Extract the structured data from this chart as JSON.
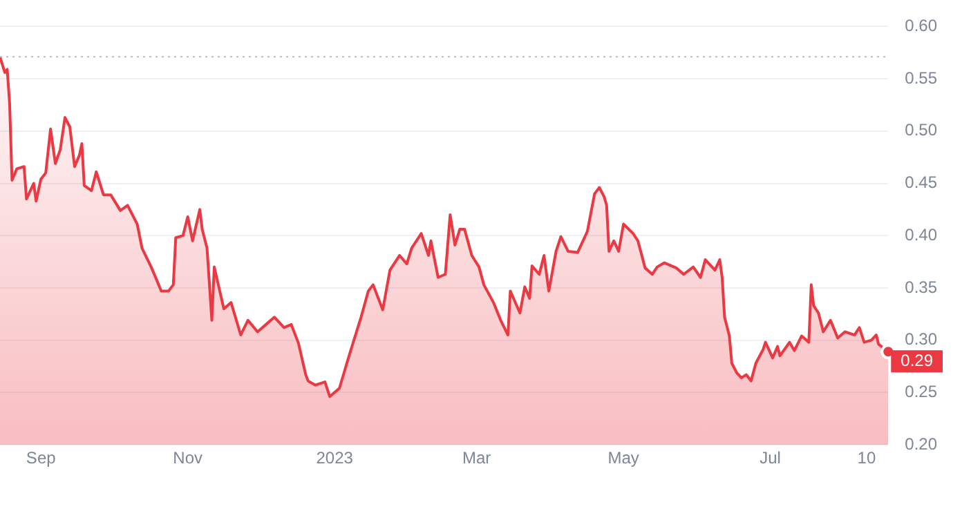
{
  "chart_data": {
    "type": "area",
    "x": [
      "2022-08-15",
      "2022-08-17",
      "2022-08-18",
      "2022-08-19",
      "2022-08-20",
      "2022-08-22",
      "2022-08-25",
      "2022-08-26",
      "2022-08-29",
      "2022-08-30",
      "2022-09-01",
      "2022-09-03",
      "2022-09-05",
      "2022-09-07",
      "2022-09-09",
      "2022-09-11",
      "2022-09-13",
      "2022-09-15",
      "2022-09-17",
      "2022-09-18",
      "2022-09-19",
      "2022-09-22",
      "2022-09-24",
      "2022-09-27",
      "2022-09-30",
      "2022-10-04",
      "2022-10-07",
      "2022-10-11",
      "2022-10-13",
      "2022-10-17",
      "2022-10-21",
      "2022-10-24",
      "2022-10-26",
      "2022-10-27",
      "2022-10-30",
      "2022-11-01",
      "2022-11-03",
      "2022-11-06",
      "2022-11-07",
      "2022-11-09",
      "2022-11-11",
      "2022-11-12",
      "2022-11-16",
      "2022-11-19",
      "2022-11-23",
      "2022-11-26",
      "2022-11-30",
      "2022-12-04",
      "2022-12-07",
      "2022-12-11",
      "2022-12-14",
      "2022-12-17",
      "2022-12-20",
      "2022-12-21",
      "2022-12-24",
      "2022-12-28",
      "2022-12-30",
      "2023-01-03",
      "2023-01-07",
      "2023-01-12",
      "2023-01-15",
      "2023-01-17",
      "2023-01-21",
      "2023-01-24",
      "2023-01-28",
      "2023-01-31",
      "2023-02-02",
      "2023-02-06",
      "2023-02-09",
      "2023-02-10",
      "2023-02-13",
      "2023-02-16",
      "2023-02-18",
      "2023-02-20",
      "2023-02-22",
      "2023-02-24",
      "2023-02-27",
      "2023-03-02",
      "2023-03-04",
      "2023-03-08",
      "2023-03-11",
      "2023-03-14",
      "2023-03-15",
      "2023-03-19",
      "2023-03-21",
      "2023-03-23",
      "2023-03-24",
      "2023-03-27",
      "2023-03-29",
      "2023-03-31",
      "2023-04-03",
      "2023-04-05",
      "2023-04-08",
      "2023-04-12",
      "2023-04-16",
      "2023-04-19",
      "2023-04-21",
      "2023-04-23",
      "2023-04-24",
      "2023-04-25",
      "2023-04-27",
      "2023-04-29",
      "2023-05-01",
      "2023-05-05",
      "2023-05-07",
      "2023-05-10",
      "2023-05-13",
      "2023-05-15",
      "2023-05-18",
      "2023-05-23",
      "2023-05-26",
      "2023-05-30",
      "2023-06-02",
      "2023-06-04",
      "2023-06-08",
      "2023-06-10",
      "2023-06-11",
      "2023-06-12",
      "2023-06-14",
      "2023-06-15",
      "2023-06-17",
      "2023-06-19",
      "2023-06-21",
      "2023-06-23",
      "2023-06-25",
      "2023-06-28",
      "2023-06-29",
      "2023-07-02",
      "2023-07-04",
      "2023-07-05",
      "2023-07-09",
      "2023-07-11",
      "2023-07-14",
      "2023-07-17",
      "2023-07-18",
      "2023-07-19",
      "2023-07-21",
      "2023-07-23",
      "2023-07-26",
      "2023-07-29",
      "2023-08-01",
      "2023-08-05",
      "2023-08-07",
      "2023-08-09",
      "2023-08-12",
      "2023-08-14",
      "2023-08-15",
      "2023-08-19"
    ],
    "series": [
      {
        "color": "#ea3943",
        "values": [
          0.571,
          0.556,
          0.559,
          0.526,
          0.453,
          0.464,
          0.466,
          0.435,
          0.45,
          0.433,
          0.454,
          0.46,
          0.502,
          0.469,
          0.482,
          0.513,
          0.504,
          0.466,
          0.477,
          0.488,
          0.448,
          0.443,
          0.461,
          0.439,
          0.439,
          0.424,
          0.429,
          0.411,
          0.388,
          0.369,
          0.347,
          0.347,
          0.353,
          0.398,
          0.4,
          0.418,
          0.395,
          0.425,
          0.406,
          0.388,
          0.319,
          0.37,
          0.33,
          0.336,
          0.305,
          0.319,
          0.308,
          0.316,
          0.322,
          0.312,
          0.315,
          0.297,
          0.267,
          0.261,
          0.257,
          0.26,
          0.246,
          0.254,
          0.285,
          0.322,
          0.347,
          0.353,
          0.329,
          0.367,
          0.381,
          0.373,
          0.388,
          0.402,
          0.381,
          0.395,
          0.36,
          0.363,
          0.42,
          0.391,
          0.406,
          0.406,
          0.381,
          0.37,
          0.353,
          0.336,
          0.319,
          0.305,
          0.347,
          0.326,
          0.351,
          0.34,
          0.371,
          0.363,
          0.381,
          0.347,
          0.385,
          0.399,
          0.385,
          0.384,
          0.404,
          0.44,
          0.446,
          0.437,
          0.429,
          0.385,
          0.395,
          0.385,
          0.411,
          0.402,
          0.395,
          0.369,
          0.363,
          0.37,
          0.374,
          0.369,
          0.363,
          0.37,
          0.36,
          0.377,
          0.367,
          0.377,
          0.36,
          0.322,
          0.304,
          0.278,
          0.269,
          0.264,
          0.267,
          0.261,
          0.278,
          0.291,
          0.298,
          0.283,
          0.294,
          0.285,
          0.298,
          0.29,
          0.304,
          0.298,
          0.353,
          0.333,
          0.326,
          0.308,
          0.319,
          0.302,
          0.308,
          0.305,
          0.312,
          0.298,
          0.3,
          0.305,
          0.296,
          0.289
        ]
      }
    ],
    "xlim": [
      "2022-08-15",
      "2023-08-19"
    ],
    "xticks": [
      {
        "value": "2022-09-01",
        "label": "Sep"
      },
      {
        "value": "2022-11-01",
        "label": "Nov"
      },
      {
        "value": "2023-01-01",
        "label": "2023"
      },
      {
        "value": "2023-03-01",
        "label": "Mar"
      },
      {
        "value": "2023-05-01",
        "label": "May"
      },
      {
        "value": "2023-07-01",
        "label": "Jul"
      },
      {
        "value": "2023-08-10",
        "label": "10"
      }
    ],
    "ylim": [
      0.2,
      0.6
    ],
    "yticks": [
      {
        "value": 0.2,
        "label": "0.20"
      },
      {
        "value": 0.25,
        "label": "0.25"
      },
      {
        "value": 0.3,
        "label": "0.30"
      },
      {
        "value": 0.35,
        "label": "0.35"
      },
      {
        "value": 0.4,
        "label": "0.40"
      },
      {
        "value": 0.45,
        "label": "0.45"
      },
      {
        "value": 0.5,
        "label": "0.50"
      },
      {
        "value": 0.55,
        "label": "0.55"
      },
      {
        "value": 0.6,
        "label": "0.60"
      }
    ],
    "grid": "y",
    "legend": false,
    "ref_lines": [
      {
        "axis": "y",
        "value": 0.571,
        "color": "#b8bcc6",
        "line_style": "dotted"
      }
    ],
    "annotations": [
      {
        "text": "0.29",
        "x": "2023-08-19",
        "y": 0.289
      }
    ]
  }
}
